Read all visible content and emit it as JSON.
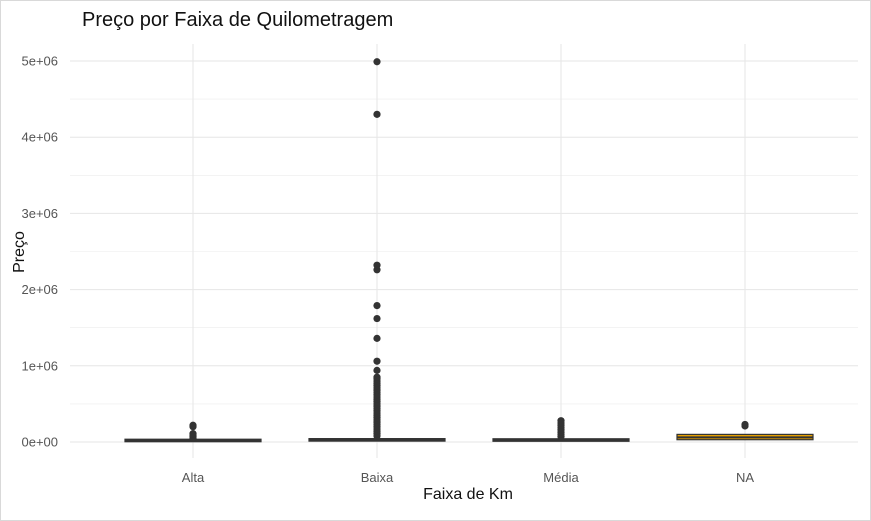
{
  "chart_data": {
    "type": "boxplot",
    "title": "Preço por Faixa de Quilometragem",
    "xlabel": "Faixa de Km",
    "ylabel": "Preço",
    "ylim": [
      -0.05,
      5.1
    ],
    "y_unit": "1e6",
    "y_ticks": [
      {
        "value": 0,
        "label": "0e+00"
      },
      {
        "value": 1,
        "label": "1e+06"
      },
      {
        "value": 2,
        "label": "2e+06"
      },
      {
        "value": 3,
        "label": "3e+06"
      },
      {
        "value": 4,
        "label": "4e+06"
      },
      {
        "value": 5,
        "label": "5e+06"
      }
    ],
    "grid": true,
    "categories": [
      "Alta",
      "Baixa",
      "Média",
      "NA"
    ],
    "boxes": [
      {
        "category": "Alta",
        "q1": 0.012,
        "median": 0.02,
        "q3": 0.028,
        "fill": "#333333",
        "outliers": [
          0.05,
          0.07,
          0.09,
          0.11,
          0.2,
          0.22
        ]
      },
      {
        "category": "Baixa",
        "q1": 0.018,
        "median": 0.028,
        "q3": 0.04,
        "fill": "#333333",
        "outliers": [
          0.08,
          0.11,
          0.14,
          0.17,
          0.2,
          0.23,
          0.26,
          0.29,
          0.32,
          0.35,
          0.38,
          0.41,
          0.44,
          0.47,
          0.5,
          0.53,
          0.56,
          0.59,
          0.62,
          0.65,
          0.68,
          0.71,
          0.74,
          0.77,
          0.8,
          0.83,
          0.85,
          0.94,
          1.06,
          1.36,
          1.62,
          1.79,
          2.26,
          2.32,
          4.3,
          4.99
        ]
      },
      {
        "category": "Média",
        "q1": 0.016,
        "median": 0.026,
        "q3": 0.038,
        "fill": "#333333",
        "outliers": [
          0.07,
          0.1,
          0.13,
          0.16,
          0.19,
          0.22,
          0.25,
          0.28
        ]
      },
      {
        "category": "NA",
        "q1": 0.03,
        "median": 0.06,
        "q3": 0.1,
        "fill": "#E69F00",
        "outliers": [
          0.21,
          0.23
        ]
      }
    ]
  }
}
